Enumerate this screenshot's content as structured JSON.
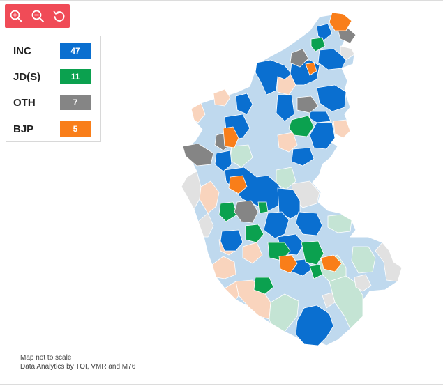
{
  "zoom_controls": {
    "zoom_in_icon": "zoom-in-icon",
    "zoom_out_icon": "zoom-out-icon",
    "reset_icon": "reset-icon",
    "background": "#f04b57"
  },
  "legend": {
    "items": [
      {
        "label": "INC",
        "count": "47",
        "color": "#0a6fd0"
      },
      {
        "label": "JD(S)",
        "count": "11",
        "color": "#0ba14f"
      },
      {
        "label": "OTH",
        "count": "7",
        "color": "#858585"
      },
      {
        "label": "BJP",
        "count": "5",
        "color": "#f97e19"
      }
    ]
  },
  "map": {
    "colors": {
      "INC": "#0a6fd0",
      "JDS": "#0ba14f",
      "OTH": "#858585",
      "BJP": "#f97e19",
      "INC_light": "#bfd9ee",
      "JDS_light": "#c4e4d4",
      "OTH_light": "#e1e1e1",
      "BJP_light": "#f9d4bd"
    }
  },
  "footer": {
    "note_scale": "Map not to scale",
    "note_credit": "Data Analytics by TOI, VMR and M76"
  }
}
